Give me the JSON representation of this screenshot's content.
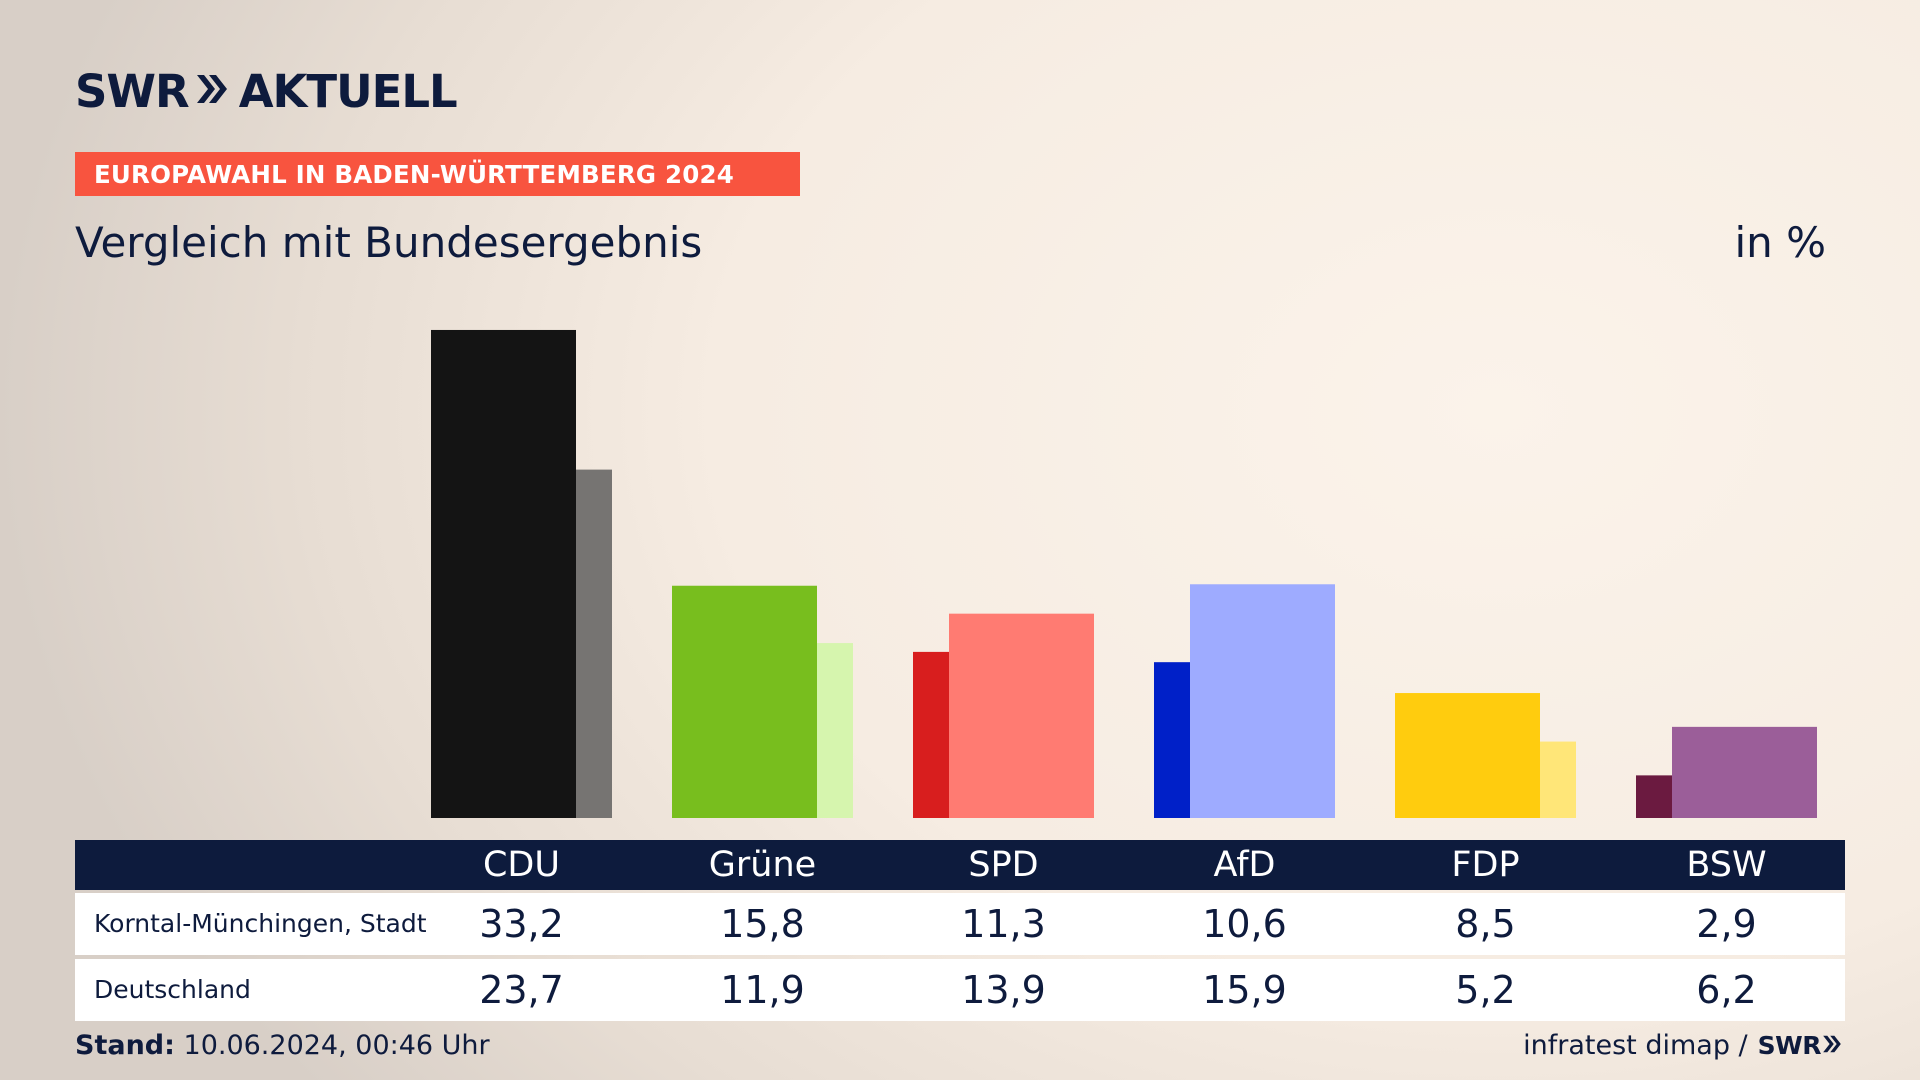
{
  "header": {
    "logo_left": "SWR",
    "logo_right": "AKTUELL",
    "banner": "EUROPAWAHL IN BADEN-WÜRTTEMBERG 2024",
    "title": "Vergleich mit Bundesergebnis",
    "unit": "in %"
  },
  "colors": {
    "banner": "#f8543f",
    "navy": "#0d1b3d"
  },
  "chart_data": {
    "type": "bar",
    "title": "Vergleich mit Bundesergebnis",
    "ylabel": "in %",
    "xlabel": "",
    "categories": [
      "CDU",
      "Grüne",
      "SPD",
      "AfD",
      "FDP",
      "BSW"
    ],
    "series": [
      {
        "name": "Korntal-Münchingen, Stadt",
        "values": [
          33.2,
          15.8,
          11.3,
          10.6,
          8.5,
          2.9
        ],
        "colors": [
          "#141414",
          "#78be1e",
          "#d81e1e",
          "#0020c8",
          "#ffcc0e",
          "#6b1a40"
        ]
      },
      {
        "name": "Deutschland",
        "values": [
          23.7,
          11.9,
          13.9,
          15.9,
          5.2,
          6.2
        ],
        "colors": [
          "#767472",
          "#d6f5ae",
          "#ff7b72",
          "#9eabff",
          "#ffe678",
          "#9b5e99"
        ]
      }
    ],
    "ylim": [
      0,
      34
    ],
    "grid": false,
    "legend": "table-below"
  },
  "table": {
    "rows": [
      {
        "label": "Korntal-Münchingen, Stadt",
        "values": [
          "33,2",
          "15,8",
          "11,3",
          "10,6",
          "8,5",
          "2,9"
        ]
      },
      {
        "label": "Deutschland",
        "values": [
          "23,7",
          "11,9",
          "13,9",
          "15,9",
          "5,2",
          "6,2"
        ]
      }
    ]
  },
  "footer": {
    "stand_label": "Stand:",
    "stand_value": "10.06.2024, 00:46 Uhr",
    "source": "infratest dimap /",
    "source_logo": "SWR"
  }
}
